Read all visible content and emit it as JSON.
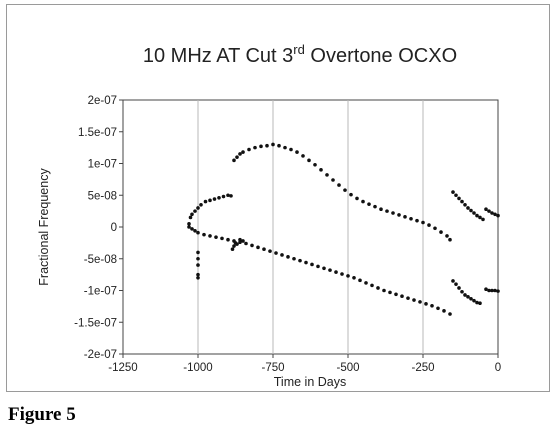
{
  "figure": {
    "caption": "Figure 5"
  },
  "chart_data": {
    "type": "scatter",
    "title": "10 MHz AT Cut 3",
    "title_sup": "rd",
    "title_rest": " Overtone OCXO",
    "xlabel": "Time in Days",
    "ylabel": "Fractional Frequency",
    "xlim": [
      -1250,
      0
    ],
    "ylim": [
      -2e-07,
      2e-07
    ],
    "x_ticks": [
      -1250,
      -1000,
      -750,
      -500,
      -250,
      0
    ],
    "x_tick_labels": [
      "-1250",
      "-1000",
      "-750",
      "-500",
      "-250",
      "0"
    ],
    "y_ticks": [
      2e-07,
      1.5e-07,
      1e-07,
      5e-08,
      0,
      -5e-08,
      -1e-07,
      -1.5e-07,
      -2e-07
    ],
    "y_tick_labels": [
      "2e-07",
      "1.5e-07",
      "1e-07",
      "5e-08",
      "0",
      "-5e-08",
      "-1e-07",
      "-1.5e-07",
      "-2e-07"
    ],
    "grid": "vertical",
    "colors": {
      "series": "#111111",
      "grid": "#b8b8b8",
      "axis": "#444444"
    },
    "series": [
      {
        "x": [
          -1030,
          -1025,
          -1020,
          -1010,
          -1000,
          -990,
          -975,
          -960,
          -945,
          -930,
          -915,
          -900,
          -890,
          -880,
          -870,
          -860,
          -850,
          -830,
          -810,
          -790,
          -770,
          -750,
          -730,
          -710,
          -690,
          -670,
          -650,
          -630,
          -610,
          -590,
          -570,
          -550,
          -530,
          -510,
          -490,
          -470,
          -450,
          -430,
          -410,
          -390,
          -370,
          -350,
          -330,
          -310,
          -290,
          -270,
          -250,
          -230,
          -210,
          -190,
          -170,
          -160,
          -150,
          -140,
          -130,
          -120,
          -110,
          -100,
          -90,
          -80,
          -70,
          -60,
          -50,
          -40,
          -30,
          -20,
          -10,
          0
        ],
        "y": [
          5e-09,
          1.5e-08,
          2e-08,
          2.5e-08,
          3e-08,
          3.5e-08,
          4e-08,
          4.2e-08,
          4.4e-08,
          4.6e-08,
          4.8e-08,
          5e-08,
          4.9e-08,
          1.05e-07,
          1.1e-07,
          1.15e-07,
          1.18e-07,
          1.22e-07,
          1.25e-07,
          1.27e-07,
          1.28e-07,
          1.3e-07,
          1.28e-07,
          1.25e-07,
          1.22e-07,
          1.18e-07,
          1.12e-07,
          1.05e-07,
          9.8e-08,
          9e-08,
          8.2e-08,
          7.4e-08,
          6.6e-08,
          5.8e-08,
          5.1e-08,
          4.5e-08,
          4e-08,
          3.6e-08,
          3.2e-08,
          2.8e-08,
          2.5e-08,
          2.2e-08,
          1.9e-08,
          1.6e-08,
          1.3e-08,
          1e-08,
          7e-09,
          3e-09,
          -2e-09,
          -8e-09,
          -1.4e-08,
          -2e-08,
          5.5e-08,
          5e-08,
          4.5e-08,
          4e-08,
          3.5e-08,
          3e-08,
          2.6e-08,
          2.2e-08,
          1.8e-08,
          1.5e-08,
          1.2e-08,
          2.8e-08,
          2.5e-08,
          2.2e-08,
          2e-08,
          1.8e-08
        ]
      },
      {
        "x": [
          -1030,
          -1020,
          -1010,
          -1000,
          -980,
          -960,
          -940,
          -920,
          -900,
          -880,
          -860,
          -840,
          -820,
          -800,
          -780,
          -760,
          -740,
          -720,
          -700,
          -680,
          -660,
          -640,
          -620,
          -600,
          -580,
          -560,
          -540,
          -520,
          -500,
          -480,
          -460,
          -440,
          -420,
          -400,
          -380,
          -360,
          -340,
          -320,
          -300,
          -280,
          -260,
          -240,
          -220,
          -200,
          -180,
          -160,
          -150,
          -140,
          -130,
          -120,
          -110,
          -100,
          -90,
          -80,
          -70,
          -60,
          -40,
          -30,
          -20,
          -10,
          0
        ],
        "y": [
          0,
          -3e-09,
          -6e-09,
          -9e-09,
          -1.2e-08,
          -1.4e-08,
          -1.6e-08,
          -1.8e-08,
          -2e-08,
          -2.2e-08,
          -2.4e-08,
          -2.6e-08,
          -2.9e-08,
          -3.2e-08,
          -3.5e-08,
          -3.8e-08,
          -4.1e-08,
          -4.4e-08,
          -4.7e-08,
          -5e-08,
          -5.3e-08,
          -5.6e-08,
          -5.9e-08,
          -6.2e-08,
          -6.5e-08,
          -6.8e-08,
          -7.1e-08,
          -7.4e-08,
          -7.7e-08,
          -8e-08,
          -8.4e-08,
          -8.8e-08,
          -9.2e-08,
          -9.6e-08,
          -1e-07,
          -1.03e-07,
          -1.06e-07,
          -1.09e-07,
          -1.12e-07,
          -1.15e-07,
          -1.18e-07,
          -1.21e-07,
          -1.24e-07,
          -1.28e-07,
          -1.32e-07,
          -1.37e-07,
          -8.5e-08,
          -9e-08,
          -9.6e-08,
          -1.02e-07,
          -1.07e-07,
          -1.1e-07,
          -1.13e-07,
          -1.16e-07,
          -1.19e-07,
          -1.2e-07,
          -9.8e-08,
          -1e-07,
          -1e-07,
          -1e-07,
          -1.01e-07
        ]
      },
      {
        "x": [
          -1000,
          -1000,
          -1000,
          -1000,
          -1000,
          -875,
          -870,
          -860,
          -850,
          -880,
          -885
        ],
        "y": [
          -4e-08,
          -5e-08,
          -6e-08,
          -7.5e-08,
          -8e-08,
          -2.5e-08,
          -2.7e-08,
          -2e-08,
          -2.2e-08,
          -3e-08,
          -3.5e-08
        ]
      }
    ]
  }
}
